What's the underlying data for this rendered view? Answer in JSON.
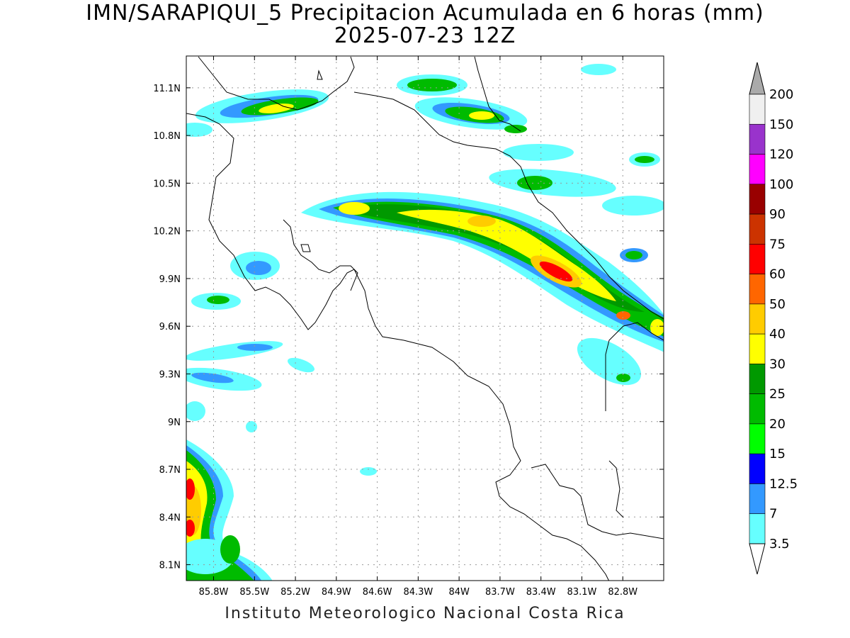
{
  "title_line1": "IMN/SARAPIQUI_5 Precipitacion Acumulada en 6 horas (mm)",
  "title_line2": "2025-07-23 12Z",
  "footer": "Instituto Meteorologico Nacional Costa Rica",
  "map": {
    "lon_range": [
      -86.0,
      -82.5
    ],
    "lat_range": [
      8.0,
      11.3
    ],
    "lon_ticks": [
      "85.8W",
      "85.5W",
      "85.2W",
      "84.9W",
      "84.6W",
      "84.3W",
      "84W",
      "83.7W",
      "83.4W",
      "83.1W",
      "82.8W"
    ],
    "lat_ticks": [
      "11.1N",
      "10.8N",
      "10.5N",
      "10.2N",
      "9.9N",
      "9.6N",
      "9.3N",
      "9N",
      "8.7N",
      "8.4N",
      "8.1N"
    ],
    "grid": true
  },
  "colorbar": {
    "levels": [
      "200",
      "150",
      "120",
      "100",
      "90",
      "75",
      "60",
      "50",
      "40",
      "30",
      "25",
      "20",
      "15",
      "12.5",
      "7",
      "3.5"
    ],
    "colors": [
      "#f0f0f0",
      "#9933cc",
      "#ff00ff",
      "#990000",
      "#cc3300",
      "#ff0000",
      "#ff6600",
      "#ffcc00",
      "#ffff00",
      "#009900",
      "#00bb00",
      "#00ff00",
      "#0000ff",
      "#3399ff",
      "#66ffff"
    ],
    "over_color": "#aaaaaa",
    "under_color": "#ffffff"
  }
}
